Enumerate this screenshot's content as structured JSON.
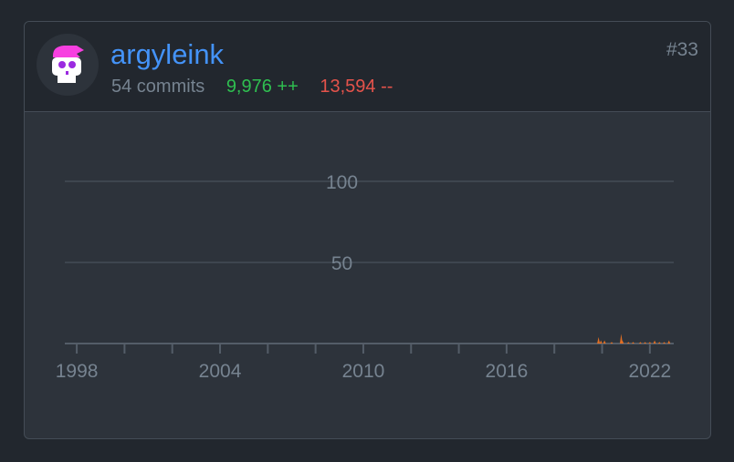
{
  "user": {
    "name": "argyleink",
    "commits": "54 commits",
    "additions": "9,976 ++",
    "deletions": "13,594 --",
    "rank": "#33"
  },
  "chart_data": {
    "type": "area",
    "x_ticks": [
      "1998",
      "2004",
      "2010",
      "2016",
      "2022"
    ],
    "y_ticks": [
      "100",
      "50"
    ],
    "xlim": [
      1997.5,
      2023.0
    ],
    "ylim": [
      0,
      100
    ],
    "grid": true,
    "color": "#e16f24",
    "points": [
      [
        2019.85,
        4
      ],
      [
        2019.95,
        2
      ],
      [
        2020.1,
        2
      ],
      [
        2020.4,
        1
      ],
      [
        2020.8,
        6
      ],
      [
        2020.85,
        2
      ],
      [
        2021.1,
        1
      ],
      [
        2021.3,
        1
      ],
      [
        2021.6,
        1
      ],
      [
        2021.8,
        1
      ],
      [
        2022.0,
        1
      ],
      [
        2022.2,
        2
      ],
      [
        2022.4,
        1
      ],
      [
        2022.6,
        1
      ],
      [
        2022.8,
        2
      ]
    ]
  }
}
